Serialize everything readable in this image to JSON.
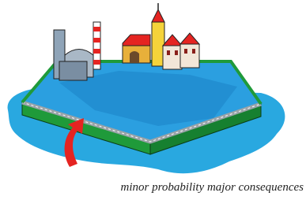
{
  "caption": "minor probability major consequences"
}
